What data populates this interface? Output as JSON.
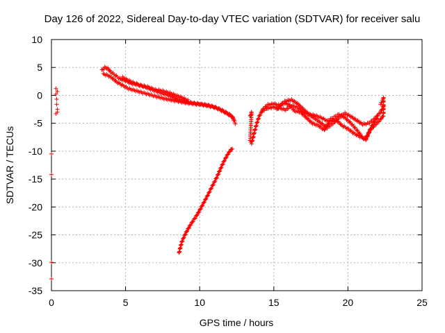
{
  "chart_data": {
    "type": "scatter",
    "title": "Day 126 of 2022, Sidereal Day-to-day VTEC variation (SDTVAR) for receiver salu",
    "xlabel": "GPS time / hours",
    "ylabel": "SDTVAR / TECUs",
    "xlim": [
      0,
      25
    ],
    "ylim": [
      -35,
      10
    ],
    "xticks": [
      0,
      5,
      10,
      15,
      20,
      25
    ],
    "yticks": [
      -35,
      -30,
      -25,
      -20,
      -15,
      -10,
      -5,
      0,
      5,
      10
    ],
    "grid": true,
    "marker": "plus",
    "color": "#ff0000",
    "series": [
      {
        "name": "early-scatter",
        "points": [
          [
            0.0,
            -10.6
          ],
          [
            0.0,
            -14.2
          ],
          [
            0.0,
            -29.8
          ],
          [
            0.0,
            -33.0
          ],
          [
            0.3,
            1.2
          ],
          [
            0.3,
            0.3
          ],
          [
            0.35,
            -0.8
          ],
          [
            0.35,
            -1.6
          ],
          [
            0.4,
            -2.4
          ],
          [
            0.3,
            -3.4
          ],
          [
            0.4,
            -3.0
          ],
          [
            0.4,
            0.8
          ]
        ]
      },
      {
        "name": "upper-band-a",
        "points": [
          [
            3.4,
            4.5
          ],
          [
            3.6,
            5.0
          ],
          [
            3.8,
            4.8
          ],
          [
            4.0,
            4.2
          ],
          [
            4.3,
            3.6
          ],
          [
            4.6,
            3.0
          ],
          [
            5.0,
            2.6
          ],
          [
            5.4,
            2.1
          ],
          [
            5.8,
            1.9
          ],
          [
            6.2,
            1.6
          ],
          [
            6.6,
            1.2
          ],
          [
            7.0,
            0.8
          ],
          [
            7.4,
            0.4
          ],
          [
            7.8,
            0.1
          ],
          [
            8.2,
            -0.3
          ],
          [
            8.6,
            -0.8
          ],
          [
            9.0,
            -1.1
          ],
          [
            9.4,
            -1.3
          ],
          [
            9.8,
            -1.5
          ],
          [
            10.2,
            -1.6
          ],
          [
            10.6,
            -1.8
          ],
          [
            11.0,
            -2.1
          ],
          [
            11.4,
            -2.6
          ],
          [
            11.8,
            -3.2
          ],
          [
            12.2,
            -3.8
          ],
          [
            12.4,
            -5.0
          ]
        ]
      },
      {
        "name": "upper-band-b",
        "points": [
          [
            3.5,
            3.8
          ],
          [
            3.8,
            3.6
          ],
          [
            4.1,
            3.1
          ],
          [
            4.4,
            2.4
          ],
          [
            4.8,
            1.8
          ],
          [
            5.2,
            1.2
          ],
          [
            5.6,
            0.9
          ],
          [
            6.0,
            0.6
          ],
          [
            6.4,
            0.3
          ],
          [
            6.8,
            0.0
          ],
          [
            7.2,
            -0.3
          ],
          [
            7.6,
            -0.6
          ],
          [
            8.0,
            -0.8
          ],
          [
            8.4,
            -1.0
          ],
          [
            8.8,
            -1.2
          ],
          [
            9.2,
            -1.4
          ],
          [
            9.6,
            -1.5
          ],
          [
            10.0,
            -1.6
          ],
          [
            10.4,
            -1.8
          ],
          [
            10.8,
            -2.0
          ],
          [
            11.2,
            -2.3
          ],
          [
            11.6,
            -2.8
          ],
          [
            12.0,
            -3.4
          ],
          [
            12.3,
            -4.2
          ]
        ]
      },
      {
        "name": "upper-band-c",
        "points": [
          [
            4.8,
            3.2
          ],
          [
            5.1,
            2.8
          ],
          [
            5.5,
            2.3
          ],
          [
            6.0,
            1.8
          ],
          [
            6.5,
            1.5
          ],
          [
            7.0,
            1.0
          ],
          [
            7.5,
            0.8
          ],
          [
            8.0,
            0.4
          ],
          [
            8.4,
            0.0
          ],
          [
            8.8,
            -0.4
          ],
          [
            9.2,
            -0.9
          ]
        ]
      },
      {
        "name": "lower-rising-arc",
        "points": [
          [
            8.6,
            -28.3
          ],
          [
            8.7,
            -27.2
          ],
          [
            8.8,
            -26.2
          ],
          [
            9.0,
            -25.0
          ],
          [
            9.2,
            -24.0
          ],
          [
            9.4,
            -23.1
          ],
          [
            9.6,
            -22.3
          ],
          [
            9.8,
            -21.5
          ],
          [
            10.0,
            -20.6
          ],
          [
            10.2,
            -19.6
          ],
          [
            10.4,
            -18.6
          ],
          [
            10.6,
            -17.6
          ],
          [
            10.8,
            -16.5
          ],
          [
            11.0,
            -15.5
          ],
          [
            11.2,
            -14.4
          ],
          [
            11.4,
            -13.2
          ],
          [
            11.6,
            -12.0
          ],
          [
            11.8,
            -11.0
          ],
          [
            12.0,
            -10.1
          ],
          [
            12.2,
            -9.5
          ]
        ]
      },
      {
        "name": "afternoon-band-a",
        "points": [
          [
            13.4,
            -3.8
          ],
          [
            13.5,
            -3.0
          ],
          [
            13.4,
            -8.2
          ],
          [
            13.5,
            -8.6
          ],
          [
            13.8,
            -5.5
          ],
          [
            14.0,
            -3.8
          ],
          [
            14.3,
            -2.4
          ],
          [
            14.6,
            -1.7
          ],
          [
            15.0,
            -1.5
          ],
          [
            15.4,
            -1.8
          ],
          [
            15.8,
            -1.0
          ],
          [
            16.2,
            -0.8
          ],
          [
            16.6,
            -1.5
          ],
          [
            17.0,
            -2.5
          ],
          [
            17.4,
            -3.5
          ],
          [
            17.8,
            -4.2
          ],
          [
            18.2,
            -5.0
          ],
          [
            18.6,
            -5.8
          ],
          [
            19.0,
            -5.0
          ],
          [
            19.4,
            -4.0
          ],
          [
            19.8,
            -3.2
          ],
          [
            20.2,
            -3.8
          ],
          [
            20.6,
            -4.5
          ],
          [
            21.0,
            -5.2
          ],
          [
            21.4,
            -5.0
          ],
          [
            21.8,
            -4.2
          ],
          [
            22.2,
            -3.0
          ],
          [
            22.4,
            -2.0
          ]
        ]
      },
      {
        "name": "afternoon-band-b",
        "points": [
          [
            14.2,
            -2.8
          ],
          [
            14.6,
            -2.3
          ],
          [
            15.0,
            -2.1
          ],
          [
            15.4,
            -2.3
          ],
          [
            15.8,
            -2.6
          ],
          [
            16.2,
            -1.8
          ],
          [
            16.6,
            -2.2
          ],
          [
            17.0,
            -3.0
          ],
          [
            17.4,
            -3.4
          ],
          [
            17.8,
            -3.6
          ],
          [
            18.2,
            -4.0
          ],
          [
            18.6,
            -4.6
          ],
          [
            19.0,
            -4.0
          ],
          [
            19.4,
            -3.4
          ],
          [
            19.8,
            -4.0
          ],
          [
            20.2,
            -5.0
          ],
          [
            20.6,
            -6.2
          ],
          [
            21.0,
            -7.6
          ],
          [
            21.2,
            -8.0
          ],
          [
            21.5,
            -6.2
          ],
          [
            21.8,
            -5.4
          ],
          [
            22.1,
            -4.6
          ],
          [
            22.4,
            -3.6
          ],
          [
            22.4,
            -0.4
          ],
          [
            22.3,
            -1.2
          ],
          [
            22.2,
            -1.6
          ]
        ]
      },
      {
        "name": "afternoon-band-c",
        "points": [
          [
            15.2,
            -2.6
          ],
          [
            15.6,
            -1.4
          ],
          [
            16.0,
            -1.6
          ],
          [
            16.4,
            -2.8
          ],
          [
            16.8,
            -3.0
          ],
          [
            17.2,
            -4.0
          ],
          [
            17.6,
            -5.0
          ],
          [
            18.0,
            -5.4
          ],
          [
            18.4,
            -6.2
          ],
          [
            18.8,
            -4.6
          ],
          [
            19.2,
            -4.4
          ],
          [
            19.6,
            -5.4
          ],
          [
            20.0,
            -6.0
          ],
          [
            20.4,
            -6.8
          ],
          [
            20.8,
            -7.4
          ],
          [
            21.2,
            -7.8
          ],
          [
            21.6,
            -5.6
          ],
          [
            22.0,
            -3.8
          ]
        ]
      }
    ]
  }
}
